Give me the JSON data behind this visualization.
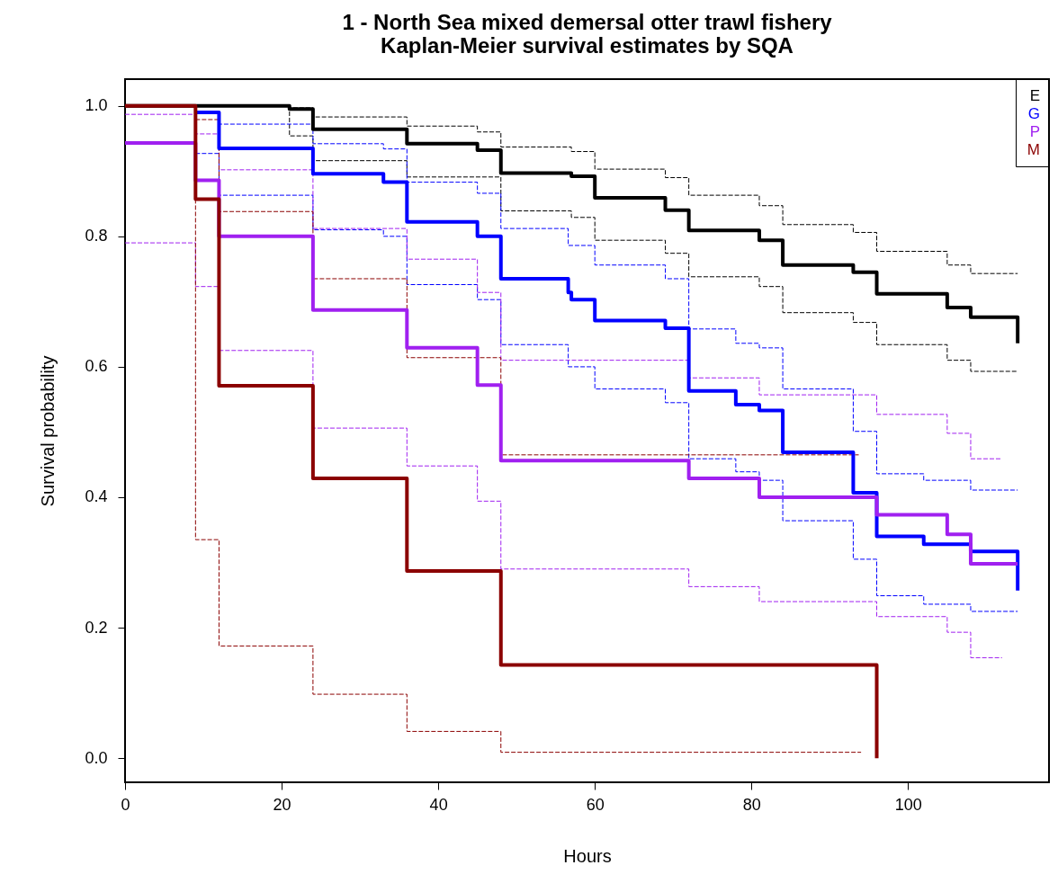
{
  "chart_data": {
    "type": "step",
    "title": "1 - North Sea mixed demersal otter trawl fishery",
    "subtitle": "Kaplan-Meier survival estimates by SQA",
    "xlabel": "Hours",
    "ylabel": "Survival probability",
    "xlim": [
      0,
      118
    ],
    "xticks": [
      0,
      20,
      40,
      60,
      80,
      100
    ],
    "ylim": [
      -0.037,
      1.041
    ],
    "yticks": [
      {
        "value": 0,
        "label": "0.0"
      },
      0.2,
      0.4,
      0.6,
      0.8,
      {
        "value": 1,
        "label": "1.0"
      }
    ],
    "grid": false,
    "legend": "top right",
    "series": [
      {
        "name": "E",
        "color": "#000000",
        "line_style": "solid",
        "x": [
          0,
          21,
          24,
          36,
          45,
          48,
          57,
          60,
          69,
          72,
          81,
          84,
          93,
          96,
          105,
          108,
          114,
          114
        ],
        "values": [
          1,
          0.995,
          0.964,
          0.942,
          0.932,
          0.897,
          0.892,
          0.859,
          0.84,
          0.809,
          0.794,
          0.756,
          0.745,
          0.712,
          0.691,
          0.676,
          0.676,
          0.636
        ]
      },
      {
        "name": "G",
        "color": "#0000ff",
        "line_style": "solid",
        "x": [
          9,
          12,
          24,
          33,
          36,
          45,
          48,
          56.6,
          57,
          60,
          69,
          72,
          78,
          81,
          84,
          93,
          96,
          102,
          108,
          114,
          114
        ],
        "values": [
          0.99,
          0.935,
          0.896,
          0.883,
          0.822,
          0.8,
          0.735,
          0.714,
          0.703,
          0.671,
          0.659,
          0.563,
          0.542,
          0.533,
          0.469,
          0.407,
          0.34,
          0.328,
          0.317,
          0.317,
          0.257
        ]
      },
      {
        "name": "P",
        "color": "#a020f0",
        "line_style": "solid",
        "x": [
          0,
          9,
          12,
          24,
          36,
          45,
          48,
          72,
          81,
          96,
          105,
          108,
          114
        ],
        "values": [
          0.943,
          0.886,
          0.8,
          0.687,
          0.629,
          0.572,
          0.456,
          0.429,
          0.4,
          0.373,
          0.343,
          0.298,
          0.298
        ]
      },
      {
        "name": "M",
        "color": "#8b0000",
        "line_style": "solid",
        "x": [
          0,
          9,
          12,
          24,
          36,
          48,
          96,
          96
        ],
        "values": [
          1,
          0.857,
          0.571,
          0.429,
          0.287,
          0.143,
          0.143,
          0
        ]
      },
      {
        "color": "#000000",
        "line_style": "dashed",
        "x": [
          0,
          21,
          24,
          36,
          45,
          48,
          57,
          60,
          69,
          72,
          81,
          84,
          93,
          96,
          105,
          108,
          114
        ],
        "values": [
          1,
          0.997,
          0.983,
          0.969,
          0.96,
          0.937,
          0.93,
          0.903,
          0.89,
          0.863,
          0.847,
          0.818,
          0.806,
          0.777,
          0.756,
          0.743,
          0.743
        ]
      },
      {
        "color": "#000000",
        "line_style": "dashed",
        "x": [
          0,
          21,
          24,
          36,
          48,
          57,
          60,
          69,
          72,
          81,
          84,
          93,
          96,
          105,
          108,
          114
        ],
        "values": [
          1,
          0.954,
          0.916,
          0.891,
          0.839,
          0.829,
          0.794,
          0.774,
          0.738,
          0.723,
          0.683,
          0.668,
          0.634,
          0.61,
          0.593,
          0.593
        ]
      },
      {
        "color": "#0000ff",
        "line_style": "dashed",
        "x": [
          9.3,
          12,
          24,
          33,
          36,
          45,
          48,
          56.6,
          60,
          69,
          72,
          78,
          81,
          84,
          93,
          96,
          102,
          108,
          114
        ],
        "values": [
          0.99,
          0.972,
          0.942,
          0.934,
          0.883,
          0.866,
          0.812,
          0.786,
          0.756,
          0.735,
          0.658,
          0.636,
          0.629,
          0.566,
          0.501,
          0.436,
          0.426,
          0.411,
          0.411
        ]
      },
      {
        "color": "#0000ff",
        "line_style": "dashed",
        "x": [
          9,
          12,
          24,
          33,
          36,
          45,
          48,
          56.6,
          60,
          69,
          72,
          78,
          81,
          84,
          93,
          96,
          102,
          108,
          114
        ],
        "values": [
          0.927,
          0.863,
          0.81,
          0.8,
          0.726,
          0.703,
          0.634,
          0.6,
          0.566,
          0.545,
          0.459,
          0.439,
          0.426,
          0.364,
          0.305,
          0.249,
          0.236,
          0.225,
          0.225
        ]
      },
      {
        "color": "#a020f0",
        "line_style": "dashed",
        "x": [
          0,
          9,
          12,
          24,
          36,
          45,
          48,
          72,
          81,
          96,
          105,
          108,
          112
        ],
        "values": [
          0.987,
          0.957,
          0.902,
          0.812,
          0.765,
          0.714,
          0.61,
          0.583,
          0.557,
          0.527,
          0.498,
          0.459,
          0.459
        ]
      },
      {
        "color": "#a020f0",
        "line_style": "dashed",
        "x": [
          0,
          9,
          12,
          24,
          36,
          45,
          48,
          72,
          81,
          96,
          105,
          108,
          112
        ],
        "values": [
          0.79,
          0.723,
          0.625,
          0.506,
          0.448,
          0.394,
          0.29,
          0.263,
          0.24,
          0.217,
          0.193,
          0.154,
          0.154
        ]
      },
      {
        "color": "#8b0000",
        "line_style": "dashed",
        "x": [
          9,
          12,
          24,
          36,
          48,
          93.7
        ],
        "values": [
          0.979,
          0.838,
          0.735,
          0.614,
          0.465,
          0.465
        ]
      },
      {
        "color": "#8b0000",
        "line_style": "dashed",
        "x": [
          0,
          9,
          12,
          24,
          36,
          48,
          94
        ],
        "values": [
          1,
          0.335,
          0.172,
          0.098,
          0.041,
          0.009,
          0.009
        ]
      }
    ]
  }
}
